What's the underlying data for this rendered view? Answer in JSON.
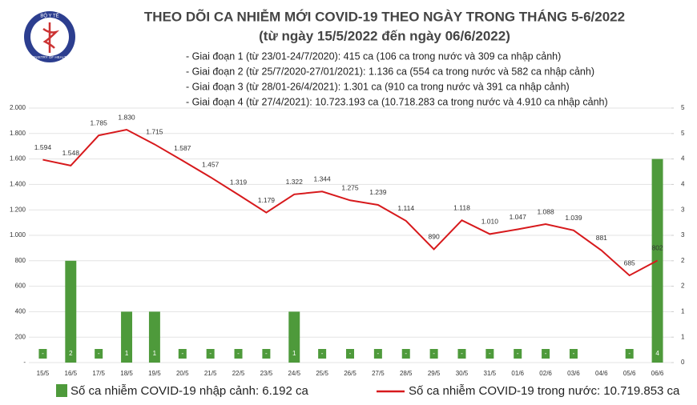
{
  "chart_data": {
    "type": "combo",
    "logo": {
      "top": "BỘ Y TẾ",
      "bottom": "MINISTRY OF HEALTH"
    },
    "title": "THEO DÕI CA NHIỄM MỚI COVID-19 THEO NGÀY TRONG THÁNG 5-6/2022",
    "subtitle": "(từ ngày 15/5/2022 đến ngày 06/6/2022)",
    "notes": [
      "- Giai đoạn 1 (từ 23/01-24/7/2020): 415 ca (106 ca trong nước và 309 ca nhập cảnh)",
      "- Giai đoạn 2 (từ 25/7/2020-27/01/2021): 1.136 ca (554 ca trong nước và 582 ca nhập cảnh)",
      "- Giai đoạn 3 (từ 28/01-26/4/2021): 1.301 ca (910 ca trong nước và 391 ca nhập cảnh)",
      "- Giai đoạn 4 (từ 27/4/2021): 10.723.193 ca (10.718.283 ca trong nước và 4.910 ca nhập cảnh)"
    ],
    "categories": [
      "15/5",
      "16/5",
      "17/5",
      "18/5",
      "19/5",
      "20/5",
      "21/5",
      "22/5",
      "23/5",
      "24/5",
      "25/5",
      "26/5",
      "27/5",
      "28/5",
      "29/5",
      "30/5",
      "31/5",
      "01/6",
      "02/6",
      "03/6",
      "04/6",
      "05/6",
      "06/6"
    ],
    "series": [
      {
        "name": "Số ca nhiễm COVID-19 nhập cảnh: 6.192 ca",
        "type": "bar",
        "axis": "y2",
        "color": "#4e9a3b",
        "values": [
          0,
          2,
          0,
          1,
          1,
          0,
          0,
          0,
          0,
          1,
          0,
          0,
          0,
          0,
          0,
          0,
          0,
          0,
          0,
          0,
          null,
          0,
          4
        ],
        "value_labels": [
          "-",
          "2",
          "-",
          "1",
          "1",
          "-",
          "-",
          "-",
          "-",
          "1",
          "-",
          "-",
          "-",
          "-",
          "-",
          "-",
          "-",
          "-",
          "-",
          "-",
          null,
          "-",
          "4"
        ]
      },
      {
        "name": "Số ca nhiễm COVID-19 trong nước: 10.719.853 ca",
        "type": "line",
        "axis": "y",
        "color": "#d7191c",
        "values": [
          1594,
          1548,
          1785,
          1830,
          1715,
          1587,
          1457,
          1319,
          1179,
          1322,
          1344,
          1275,
          1239,
          1114,
          890,
          1118,
          1010,
          1047,
          1088,
          1039,
          881,
          685,
          802
        ],
        "value_labels": [
          "1.594",
          "1.548",
          "1.785",
          "1.830",
          "1.715",
          "1.587",
          "1.457",
          "1.319",
          "1.179",
          "1.322",
          "1.344",
          "1.275",
          "1.239",
          "1.114",
          "890",
          "1.118",
          "1.010",
          "1.047",
          "1.088",
          "1.039",
          "881",
          "685",
          "802"
        ]
      }
    ],
    "ylim": [
      0,
      2000
    ],
    "yticks": [
      {
        "value": 0,
        "label": "-"
      },
      200,
      400,
      600,
      800,
      {
        "value": 1000,
        "label": "1.000"
      },
      {
        "value": 1200,
        "label": "1.200"
      },
      {
        "value": 1400,
        "label": "1.400"
      },
      {
        "value": 1600,
        "label": "1.600"
      },
      {
        "value": 1800,
        "label": "1.800"
      },
      {
        "value": 2000,
        "label": "2.000"
      }
    ],
    "y2lim": [
      0,
      5
    ],
    "y2ticks": [
      0,
      {
        "value": 0.5,
        "label": "1"
      },
      1,
      {
        "value": 1.5,
        "label": "2"
      },
      2,
      {
        "value": 2.5,
        "label": "3"
      },
      3,
      {
        "value": 3.5,
        "label": "4"
      },
      4,
      {
        "value": 4.5,
        "label": "5"
      },
      5
    ],
    "grid": true
  }
}
